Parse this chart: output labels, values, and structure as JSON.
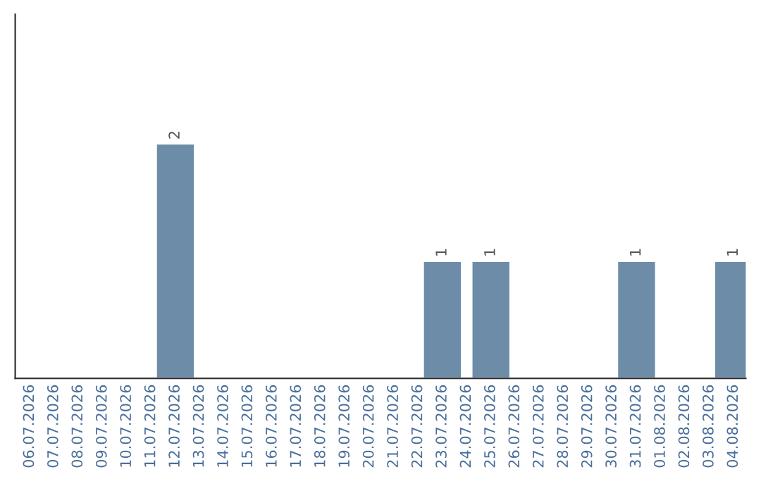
{
  "chart_data": {
    "type": "bar",
    "categories": [
      "06.07.2026",
      "07.07.2026",
      "08.07.2026",
      "09.07.2026",
      "10.07.2026",
      "11.07.2026",
      "12.07.2026",
      "13.07.2026",
      "14.07.2026",
      "15.07.2026",
      "16.07.2026",
      "17.07.2026",
      "18.07.2026",
      "19.07.2026",
      "20.07.2026",
      "21.07.2026",
      "22.07.2026",
      "23.07.2026",
      "24.07.2026",
      "25.07.2026",
      "26.07.2026",
      "27.07.2026",
      "28.07.2026",
      "29.07.2026",
      "30.07.2026",
      "31.07.2026",
      "01.08.2026",
      "02.08.2026",
      "03.08.2026",
      "04.08.2026"
    ],
    "values": [
      null,
      null,
      null,
      null,
      null,
      null,
      2,
      null,
      null,
      null,
      null,
      null,
      null,
      null,
      null,
      null,
      null,
      1,
      null,
      1,
      null,
      null,
      null,
      null,
      null,
      1,
      null,
      null,
      null,
      1
    ],
    "value_labels": [
      null,
      null,
      null,
      null,
      null,
      null,
      "2",
      null,
      null,
      null,
      null,
      null,
      null,
      null,
      null,
      null,
      null,
      "1",
      null,
      "1",
      null,
      null,
      null,
      null,
      null,
      "1",
      null,
      null,
      null,
      "1"
    ],
    "color": "#6d8ca8",
    "ylim": [
      0,
      3.1
    ],
    "tick_labels": "x",
    "grid": false,
    "legend": false
  }
}
